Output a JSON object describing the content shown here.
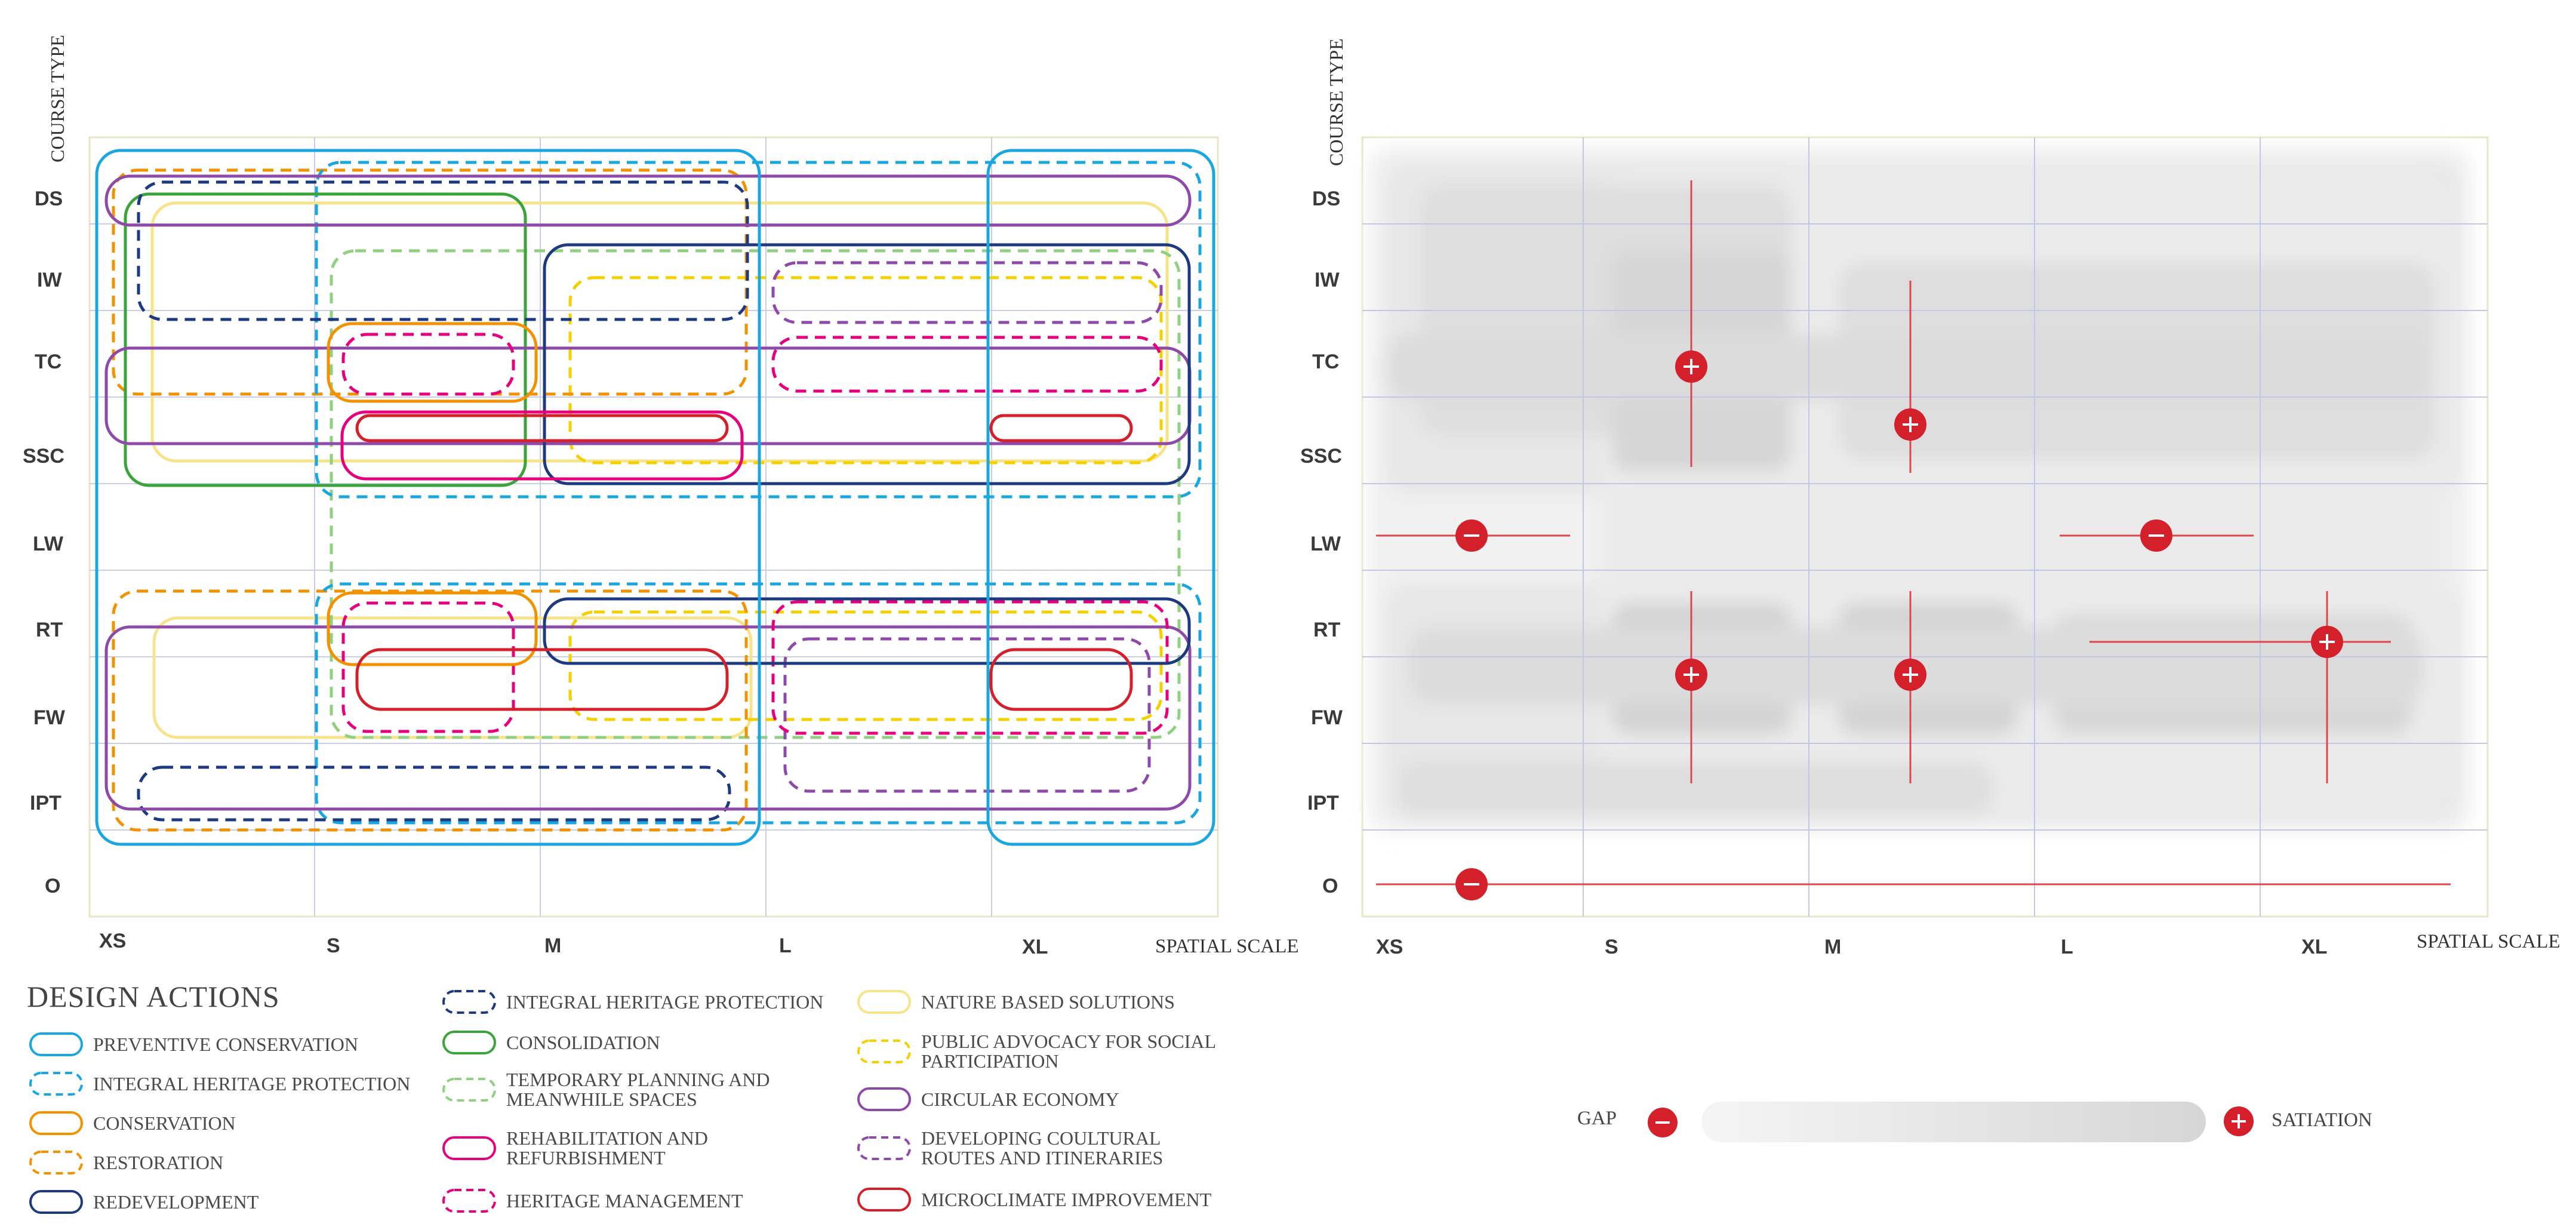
{
  "left_chart": {
    "y_axis_title": "COURSE TYPE",
    "x_axis_title": "SPATIAL SCALE",
    "y_categories": [
      "DS",
      "IW",
      "TC",
      "SSC",
      "LW",
      "RT",
      "FW",
      "IPT",
      "O"
    ],
    "x_categories": [
      "XS",
      "S",
      "M",
      "L",
      "XL"
    ]
  },
  "right_chart": {
    "y_axis_title": "COURSE TYPE",
    "x_axis_title": "SPATIAL SCALE",
    "y_categories": [
      "DS",
      "IW",
      "TC",
      "SSC",
      "LW",
      "RT",
      "FW",
      "IPT",
      "O"
    ],
    "x_categories": [
      "XS",
      "S",
      "M",
      "L",
      "XL"
    ],
    "gap_label": "GAP",
    "satiation_label": "SATIATION",
    "markers": [
      {
        "x": "S",
        "y": "TC",
        "type": "satiation"
      },
      {
        "x": "M",
        "y": "SSC",
        "type": "satiation"
      },
      {
        "x": "XS",
        "y": "LW",
        "type": "gap"
      },
      {
        "x": "L",
        "y": "LW",
        "type": "gap"
      },
      {
        "x": "S",
        "y": "FW",
        "type": "satiation"
      },
      {
        "x": "M",
        "y": "FW",
        "type": "satiation"
      },
      {
        "x": "XL",
        "y": "RT",
        "type": "satiation"
      },
      {
        "x": "XS",
        "y": "O",
        "type": "gap"
      }
    ]
  },
  "legend": {
    "title": "DESIGN ACTIONS",
    "items": [
      {
        "label": "PREVENTIVE CONSERVATION",
        "color": "#1aa7e0",
        "dashed": false
      },
      {
        "label": "INTEGRAL HERITAGE PROTECTION",
        "color": "#1aa7e0",
        "dashed": true
      },
      {
        "label": "CONSERVATION",
        "color": "#f39200",
        "dashed": false
      },
      {
        "label": "RESTORATION",
        "color": "#f39200",
        "dashed": true
      },
      {
        "label": "REDEVELOPMENT",
        "color": "#1d3a80",
        "dashed": false
      },
      {
        "label": "INTEGRAL HERITAGE PROTECTION",
        "color": "#1d3a80",
        "dashed": true
      },
      {
        "label": "CONSOLIDATION",
        "color": "#3aa33a",
        "dashed": false
      },
      {
        "label": "TEMPORARY PLANNING AND MEANWHILE SPACES",
        "color": "#8fd081",
        "dashed": true
      },
      {
        "label": "REHABILITATION AND REFURBISHMENT",
        "color": "#e6007e",
        "dashed": false
      },
      {
        "label": "HERITAGE MANAGEMENT",
        "color": "#e6007e",
        "dashed": true
      },
      {
        "label": "NATURE BASED SOLUTIONS",
        "color": "#f7e48a",
        "dashed": false
      },
      {
        "label": "PUBLIC ADVOCACY FOR SOCIAL PARTICIPATION",
        "color": "#f5d000",
        "dashed": true
      },
      {
        "label": "CIRCULAR ECONOMY",
        "color": "#8e4aa8",
        "dashed": false
      },
      {
        "label": "DEVELOPING COULTURAL ROUTES AND ITINERARIES",
        "color": "#8e4aa8",
        "dashed": true
      },
      {
        "label": "MICROCLIMATE IMPROVEMENT",
        "color": "#d4202b",
        "dashed": false
      }
    ]
  }
}
